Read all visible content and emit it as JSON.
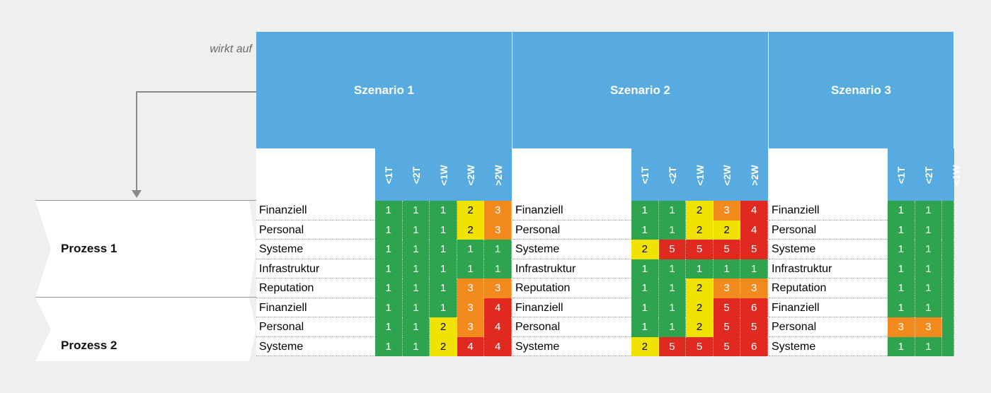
{
  "annotation": "wirkt auf",
  "colors": {
    "1": "#2ea44f",
    "2": "#f2e200",
    "3": "#f28a1e",
    "4": "#e02a20",
    "5": "#e02a20",
    "6": "#e02a20"
  },
  "columns": [
    "<1T",
    "<2T",
    "<1W",
    "<2W",
    ">2W"
  ],
  "scenarios": [
    {
      "name": "Szenario 1",
      "rows": [
        {
          "label": "Finanziell",
          "vals": [
            1,
            1,
            1,
            2,
            3
          ]
        },
        {
          "label": "Personal",
          "vals": [
            1,
            1,
            1,
            2,
            3
          ]
        },
        {
          "label": "Systeme",
          "vals": [
            1,
            1,
            1,
            1,
            1
          ]
        },
        {
          "label": "Infrastruktur",
          "vals": [
            1,
            1,
            1,
            1,
            1
          ]
        },
        {
          "label": "Reputation",
          "vals": [
            1,
            1,
            1,
            3,
            3
          ]
        },
        {
          "label": "Finanziell",
          "vals": [
            1,
            1,
            1,
            3,
            4
          ]
        },
        {
          "label": "Personal",
          "vals": [
            1,
            1,
            2,
            3,
            4
          ]
        },
        {
          "label": "Systeme",
          "vals": [
            1,
            1,
            2,
            4,
            4
          ]
        }
      ]
    },
    {
      "name": "Szenario 2",
      "rows": [
        {
          "label": "Finanziell",
          "vals": [
            1,
            1,
            2,
            3,
            4
          ]
        },
        {
          "label": "Personal",
          "vals": [
            1,
            1,
            2,
            2,
            4
          ]
        },
        {
          "label": "Systeme",
          "vals": [
            2,
            5,
            5,
            5,
            5
          ]
        },
        {
          "label": "Infrastruktur",
          "vals": [
            1,
            1,
            1,
            1,
            1
          ]
        },
        {
          "label": "Reputation",
          "vals": [
            1,
            1,
            2,
            3,
            3
          ]
        },
        {
          "label": "Finanziell",
          "vals": [
            1,
            1,
            2,
            5,
            6
          ]
        },
        {
          "label": "Personal",
          "vals": [
            1,
            1,
            2,
            5,
            5
          ]
        },
        {
          "label": "Systeme",
          "vals": [
            2,
            5,
            5,
            5,
            6
          ]
        }
      ]
    },
    {
      "name": "Szenario 3",
      "rows": [
        {
          "label": "Finanziell",
          "vals": [
            1,
            1,
            null,
            null,
            null
          ]
        },
        {
          "label": "Personal",
          "vals": [
            1,
            1,
            null,
            null,
            null
          ]
        },
        {
          "label": "Systeme",
          "vals": [
            1,
            1,
            null,
            null,
            null
          ]
        },
        {
          "label": "Infrastruktur",
          "vals": [
            1,
            1,
            null,
            null,
            null
          ]
        },
        {
          "label": "Reputation",
          "vals": [
            1,
            1,
            null,
            null,
            null
          ]
        },
        {
          "label": "Finanziell",
          "vals": [
            1,
            1,
            null,
            null,
            null
          ]
        },
        {
          "label": "Personal",
          "vals": [
            3,
            3,
            null,
            null,
            null
          ]
        },
        {
          "label": "Systeme",
          "vals": [
            1,
            1,
            null,
            null,
            null
          ]
        }
      ]
    }
  ],
  "processes": [
    {
      "label": "Prozess 1"
    },
    {
      "label": "Prozess 2"
    }
  ]
}
